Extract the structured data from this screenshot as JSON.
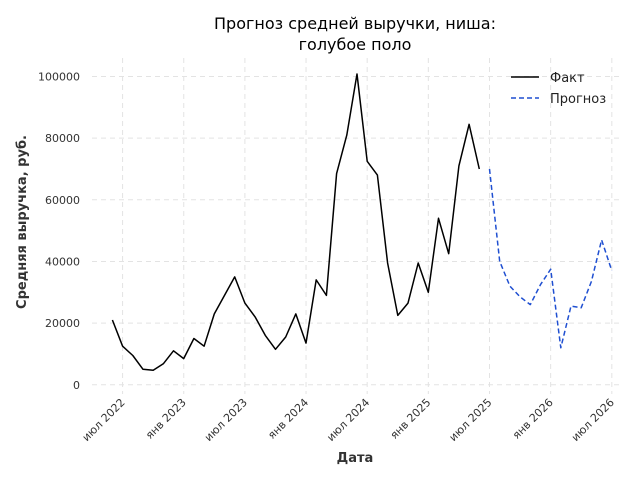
{
  "chart_data": {
    "type": "line",
    "title_lines": [
      "Прогноз средней выручки, ниша:",
      "голубое поло"
    ],
    "xlabel": "Дата",
    "ylabel": "Средняя выручка, руб.",
    "x_ticks": [
      "июл 2022",
      "янв 2023",
      "июл 2023",
      "янв 2024",
      "июл 2024",
      "янв 2025",
      "июл 2025",
      "янв 2026",
      "июл 2026"
    ],
    "y_ticks": [
      "0",
      "20000",
      "40000",
      "60000",
      "80000",
      "100000"
    ],
    "ylim": [
      -3000,
      106000
    ],
    "xlim": [
      "2022-04",
      "2026-08"
    ],
    "grid": true,
    "legend_position": "top-right",
    "colors": {
      "fact": "#000000",
      "forecast": "#1f4fd1",
      "grid": "#e3e3e3"
    },
    "series": [
      {
        "name": "Факт",
        "style": "solid",
        "x": [
          "2022-06",
          "2022-07",
          "2022-08",
          "2022-09",
          "2022-10",
          "2022-11",
          "2022-12",
          "2023-01",
          "2023-02",
          "2023-03",
          "2023-04",
          "2023-05",
          "2023-06",
          "2023-07",
          "2023-08",
          "2023-09",
          "2023-10",
          "2023-11",
          "2023-12",
          "2024-01",
          "2024-02",
          "2024-03",
          "2024-04",
          "2024-05",
          "2024-06",
          "2024-07",
          "2024-08",
          "2024-09",
          "2024-10",
          "2024-11",
          "2024-12",
          "2025-01",
          "2025-02",
          "2025-03",
          "2025-04",
          "2025-05",
          "2025-06",
          "2025-07"
        ],
        "values": [
          21000,
          12500,
          9500,
          5000,
          4700,
          6800,
          11000,
          8500,
          15000,
          12500,
          23000,
          29000,
          35000,
          26500,
          22000,
          16000,
          11500,
          15500,
          23000,
          13500,
          34000,
          29000,
          68500,
          81000,
          100800,
          72500,
          68000,
          39500,
          22500,
          26500,
          39500,
          30000,
          54000,
          42500,
          71000,
          84500,
          70000,
          null
        ]
      },
      {
        "name": "Прогноз",
        "style": "dashed",
        "x": [
          "2025-07",
          "2025-08",
          "2025-09",
          "2025-10",
          "2025-11",
          "2025-12",
          "2026-01",
          "2026-02",
          "2026-03",
          "2026-04",
          "2026-05",
          "2026-06",
          "2026-07"
        ],
        "values": [
          70000,
          40000,
          32000,
          28500,
          26000,
          32500,
          37500,
          12000,
          25500,
          25000,
          33500,
          47000,
          37000
        ]
      }
    ]
  }
}
